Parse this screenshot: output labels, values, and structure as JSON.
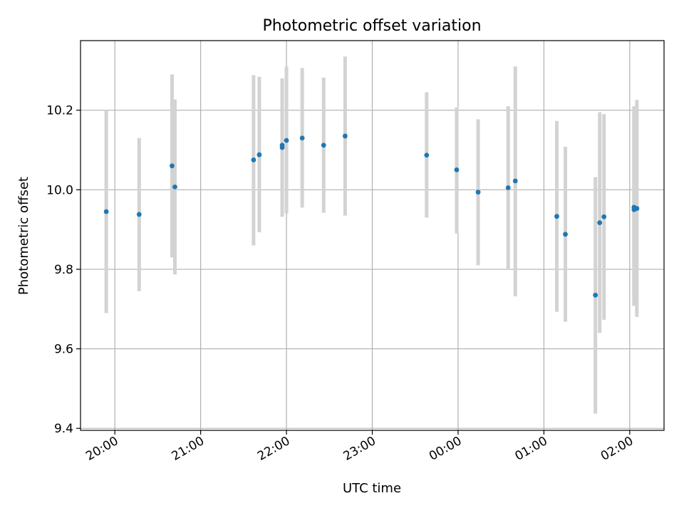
{
  "chart_data": {
    "type": "scatter",
    "title": "Photometric offset variation",
    "xlabel": "UTC time",
    "ylabel": "Photometric offset",
    "x_tick_labels": [
      "20:00",
      "21:00",
      "22:00",
      "23:00",
      "00:00",
      "01:00",
      "02:00"
    ],
    "x_tick_values": [
      "20:00",
      "21:00",
      "22:00",
      "23:00",
      "00:00",
      "01:00",
      "02:00"
    ],
    "y_tick_labels": [
      "9.4",
      "9.6",
      "9.8",
      "10.0",
      "10.2"
    ],
    "y_tick_values": [
      9.4,
      9.6,
      9.8,
      10.0,
      10.2
    ],
    "xlim": [
      "19:36",
      "02:24"
    ],
    "ylim": [
      9.395,
      10.375
    ],
    "grid": true,
    "colors": {
      "points": "#1f77b4",
      "error_bars": "#d3d3d3",
      "grid": "#b0b0b0"
    },
    "points": [
      {
        "x": "19:54",
        "y": 9.945,
        "yerr_low": 9.69,
        "yerr_high": 10.2
      },
      {
        "x": "20:17",
        "y": 9.938,
        "yerr_low": 9.745,
        "yerr_high": 10.13
      },
      {
        "x": "20:40",
        "y": 10.06,
        "yerr_low": 9.83,
        "yerr_high": 10.29
      },
      {
        "x": "20:42",
        "y": 10.007,
        "yerr_low": 9.787,
        "yerr_high": 10.227
      },
      {
        "x": "21:37",
        "y": 10.075,
        "yerr_low": 9.86,
        "yerr_high": 10.288
      },
      {
        "x": "21:41",
        "y": 10.088,
        "yerr_low": 9.893,
        "yerr_high": 10.284
      },
      {
        "x": "21:57",
        "y": 10.106,
        "yerr_low": 9.932,
        "yerr_high": 10.28
      },
      {
        "x": "21:57",
        "y": 10.112,
        "yerr_low": 9.94,
        "yerr_high": 10.27
      },
      {
        "x": "22:00",
        "y": 10.124,
        "yerr_low": 9.94,
        "yerr_high": 10.31
      },
      {
        "x": "22:11",
        "y": 10.13,
        "yerr_low": 9.955,
        "yerr_high": 10.306
      },
      {
        "x": "22:26",
        "y": 10.112,
        "yerr_low": 9.942,
        "yerr_high": 10.282
      },
      {
        "x": "22:41",
        "y": 10.135,
        "yerr_low": 9.935,
        "yerr_high": 10.335
      },
      {
        "x": "23:38",
        "y": 10.087,
        "yerr_low": 9.93,
        "yerr_high": 10.245
      },
      {
        "x": "23:59",
        "y": 10.05,
        "yerr_low": 9.89,
        "yerr_high": 10.207
      },
      {
        "x": "00:14",
        "y": 9.994,
        "yerr_low": 9.81,
        "yerr_high": 10.177
      },
      {
        "x": "00:35",
        "y": 10.005,
        "yerr_low": 9.8,
        "yerr_high": 10.21
      },
      {
        "x": "00:40",
        "y": 10.022,
        "yerr_low": 9.732,
        "yerr_high": 10.31
      },
      {
        "x": "01:09",
        "y": 9.933,
        "yerr_low": 9.693,
        "yerr_high": 10.173
      },
      {
        "x": "01:15",
        "y": 9.888,
        "yerr_low": 9.668,
        "yerr_high": 10.108
      },
      {
        "x": "01:36",
        "y": 9.735,
        "yerr_low": 9.437,
        "yerr_high": 10.032
      },
      {
        "x": "01:39",
        "y": 9.917,
        "yerr_low": 9.64,
        "yerr_high": 10.195
      },
      {
        "x": "01:42",
        "y": 9.932,
        "yerr_low": 9.673,
        "yerr_high": 10.19
      },
      {
        "x": "02:03",
        "y": 9.95,
        "yerr_low": 9.708,
        "yerr_high": 10.19
      },
      {
        "x": "02:03",
        "y": 9.956,
        "yerr_low": 9.72,
        "yerr_high": 10.21
      },
      {
        "x": "02:05",
        "y": 9.953,
        "yerr_low": 9.68,
        "yerr_high": 10.226
      }
    ]
  }
}
